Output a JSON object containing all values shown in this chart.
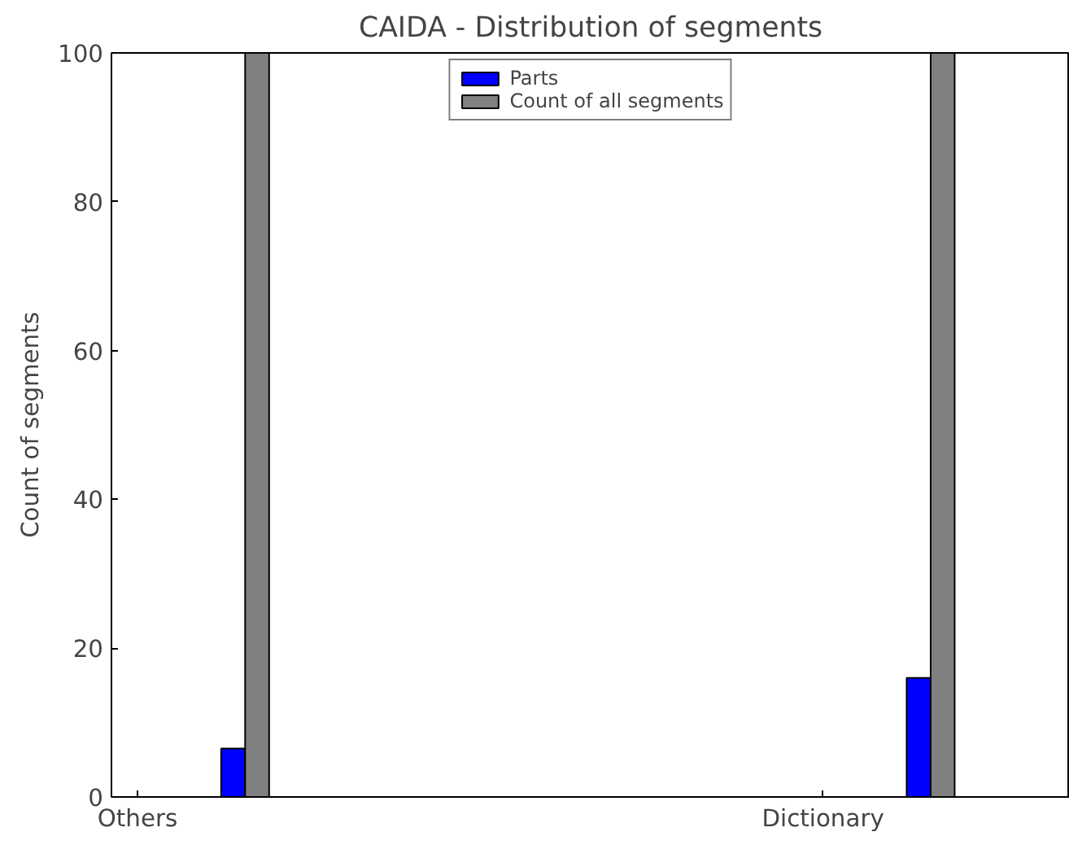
{
  "chart_data": {
    "type": "bar",
    "title": "CAIDA - Distribution of segments",
    "ylabel": "Count of segments",
    "categories": [
      "Others",
      "Dictionary"
    ],
    "series": [
      {
        "name": "Parts",
        "color": "#0000ff",
        "values": [
          6.5,
          16
        ]
      },
      {
        "name": "Count of all segments",
        "color": "#808080",
        "values": [
          100,
          100
        ]
      }
    ],
    "ylim": [
      0,
      100
    ],
    "yticks": [
      0,
      20,
      40,
      60,
      80,
      100
    ],
    "grid": false,
    "legend": "top"
  }
}
